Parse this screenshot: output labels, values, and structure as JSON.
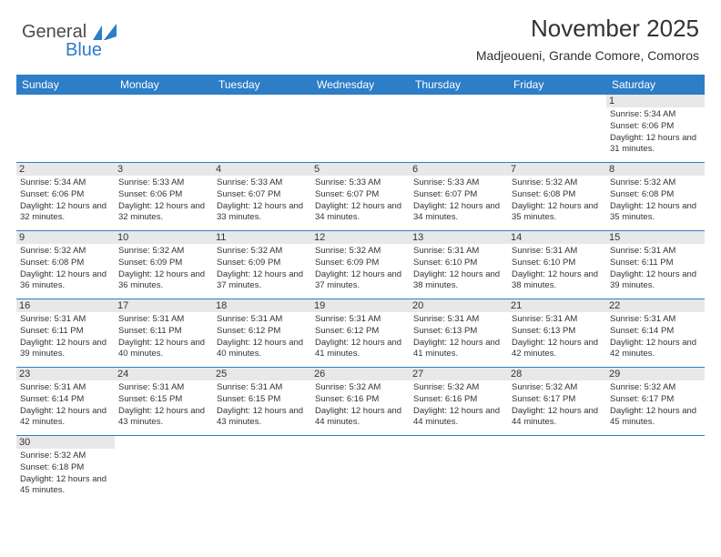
{
  "logo": {
    "text1": "General",
    "text2": "Blue",
    "color1": "#4a4a4a",
    "color2": "#2d7dc7"
  },
  "header": {
    "month_title": "November 2025",
    "location": "Madjeoueni, Grande Comore, Comoros"
  },
  "colors": {
    "header_bg": "#2d7dc7",
    "header_text": "#ffffff",
    "day_bg": "#e8e8e8",
    "border": "#2d7dc7",
    "text": "#333333"
  },
  "weekdays": [
    "Sunday",
    "Monday",
    "Tuesday",
    "Wednesday",
    "Thursday",
    "Friday",
    "Saturday"
  ],
  "rows": [
    [
      null,
      null,
      null,
      null,
      null,
      null,
      {
        "d": "1",
        "sr": "5:34 AM",
        "ss": "6:06 PM",
        "dl": "12 hours and 31 minutes."
      }
    ],
    [
      {
        "d": "2",
        "sr": "5:34 AM",
        "ss": "6:06 PM",
        "dl": "12 hours and 32 minutes."
      },
      {
        "d": "3",
        "sr": "5:33 AM",
        "ss": "6:06 PM",
        "dl": "12 hours and 32 minutes."
      },
      {
        "d": "4",
        "sr": "5:33 AM",
        "ss": "6:07 PM",
        "dl": "12 hours and 33 minutes."
      },
      {
        "d": "5",
        "sr": "5:33 AM",
        "ss": "6:07 PM",
        "dl": "12 hours and 34 minutes."
      },
      {
        "d": "6",
        "sr": "5:33 AM",
        "ss": "6:07 PM",
        "dl": "12 hours and 34 minutes."
      },
      {
        "d": "7",
        "sr": "5:32 AM",
        "ss": "6:08 PM",
        "dl": "12 hours and 35 minutes."
      },
      {
        "d": "8",
        "sr": "5:32 AM",
        "ss": "6:08 PM",
        "dl": "12 hours and 35 minutes."
      }
    ],
    [
      {
        "d": "9",
        "sr": "5:32 AM",
        "ss": "6:08 PM",
        "dl": "12 hours and 36 minutes."
      },
      {
        "d": "10",
        "sr": "5:32 AM",
        "ss": "6:09 PM",
        "dl": "12 hours and 36 minutes."
      },
      {
        "d": "11",
        "sr": "5:32 AM",
        "ss": "6:09 PM",
        "dl": "12 hours and 37 minutes."
      },
      {
        "d": "12",
        "sr": "5:32 AM",
        "ss": "6:09 PM",
        "dl": "12 hours and 37 minutes."
      },
      {
        "d": "13",
        "sr": "5:31 AM",
        "ss": "6:10 PM",
        "dl": "12 hours and 38 minutes."
      },
      {
        "d": "14",
        "sr": "5:31 AM",
        "ss": "6:10 PM",
        "dl": "12 hours and 38 minutes."
      },
      {
        "d": "15",
        "sr": "5:31 AM",
        "ss": "6:11 PM",
        "dl": "12 hours and 39 minutes."
      }
    ],
    [
      {
        "d": "16",
        "sr": "5:31 AM",
        "ss": "6:11 PM",
        "dl": "12 hours and 39 minutes."
      },
      {
        "d": "17",
        "sr": "5:31 AM",
        "ss": "6:11 PM",
        "dl": "12 hours and 40 minutes."
      },
      {
        "d": "18",
        "sr": "5:31 AM",
        "ss": "6:12 PM",
        "dl": "12 hours and 40 minutes."
      },
      {
        "d": "19",
        "sr": "5:31 AM",
        "ss": "6:12 PM",
        "dl": "12 hours and 41 minutes."
      },
      {
        "d": "20",
        "sr": "5:31 AM",
        "ss": "6:13 PM",
        "dl": "12 hours and 41 minutes."
      },
      {
        "d": "21",
        "sr": "5:31 AM",
        "ss": "6:13 PM",
        "dl": "12 hours and 42 minutes."
      },
      {
        "d": "22",
        "sr": "5:31 AM",
        "ss": "6:14 PM",
        "dl": "12 hours and 42 minutes."
      }
    ],
    [
      {
        "d": "23",
        "sr": "5:31 AM",
        "ss": "6:14 PM",
        "dl": "12 hours and 42 minutes."
      },
      {
        "d": "24",
        "sr": "5:31 AM",
        "ss": "6:15 PM",
        "dl": "12 hours and 43 minutes."
      },
      {
        "d": "25",
        "sr": "5:31 AM",
        "ss": "6:15 PM",
        "dl": "12 hours and 43 minutes."
      },
      {
        "d": "26",
        "sr": "5:32 AM",
        "ss": "6:16 PM",
        "dl": "12 hours and 44 minutes."
      },
      {
        "d": "27",
        "sr": "5:32 AM",
        "ss": "6:16 PM",
        "dl": "12 hours and 44 minutes."
      },
      {
        "d": "28",
        "sr": "5:32 AM",
        "ss": "6:17 PM",
        "dl": "12 hours and 44 minutes."
      },
      {
        "d": "29",
        "sr": "5:32 AM",
        "ss": "6:17 PM",
        "dl": "12 hours and 45 minutes."
      }
    ],
    [
      {
        "d": "30",
        "sr": "5:32 AM",
        "ss": "6:18 PM",
        "dl": "12 hours and 45 minutes."
      },
      null,
      null,
      null,
      null,
      null,
      null
    ]
  ],
  "labels": {
    "sunrise": "Sunrise:",
    "sunset": "Sunset:",
    "daylight": "Daylight:"
  }
}
